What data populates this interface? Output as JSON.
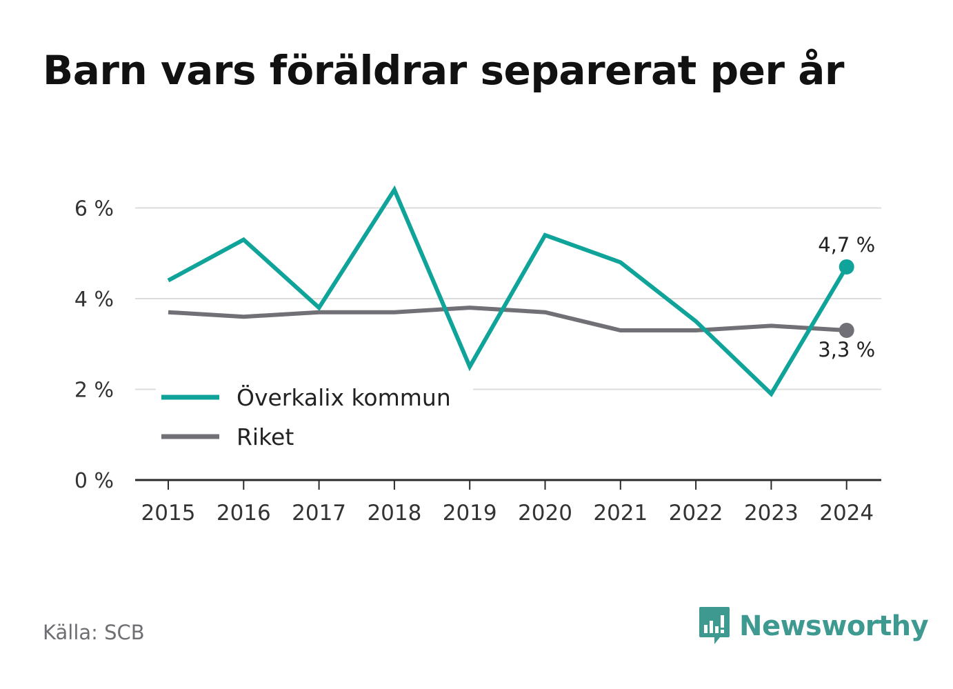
{
  "title": "Barn vars föräldrar separerat per år",
  "source": "Källa: SCB",
  "brand": {
    "name": "Newsworthy",
    "icon": "newsworthy-logo-icon"
  },
  "colors": {
    "primary": "#0fa39a",
    "secondary": "#707076",
    "grid": "#dcdcdc",
    "axis": "#2b2b2b",
    "text": "#333333",
    "brand": "#3e9990"
  },
  "chart_data": {
    "type": "line",
    "x": [
      "2015",
      "2016",
      "2017",
      "2018",
      "2019",
      "2020",
      "2021",
      "2022",
      "2023",
      "2024"
    ],
    "y_ticks": [
      "0 %",
      "2 %",
      "4 %",
      "6 %"
    ],
    "y_tick_values": [
      0,
      2,
      4,
      6
    ],
    "ylim": [
      0,
      6.6
    ],
    "grid": true,
    "legend": "bottom-left",
    "series": [
      {
        "name": "Överkalix kommun",
        "color": "#0fa39a",
        "values": [
          4.4,
          5.3,
          3.8,
          6.4,
          2.5,
          5.4,
          4.8,
          3.5,
          1.9,
          4.7
        ],
        "end_label": "4,7 %"
      },
      {
        "name": "Riket",
        "color": "#707076",
        "values": [
          3.7,
          3.6,
          3.7,
          3.7,
          3.8,
          3.7,
          3.3,
          3.3,
          3.4,
          3.3
        ],
        "end_label": "3,3 %"
      }
    ]
  }
}
